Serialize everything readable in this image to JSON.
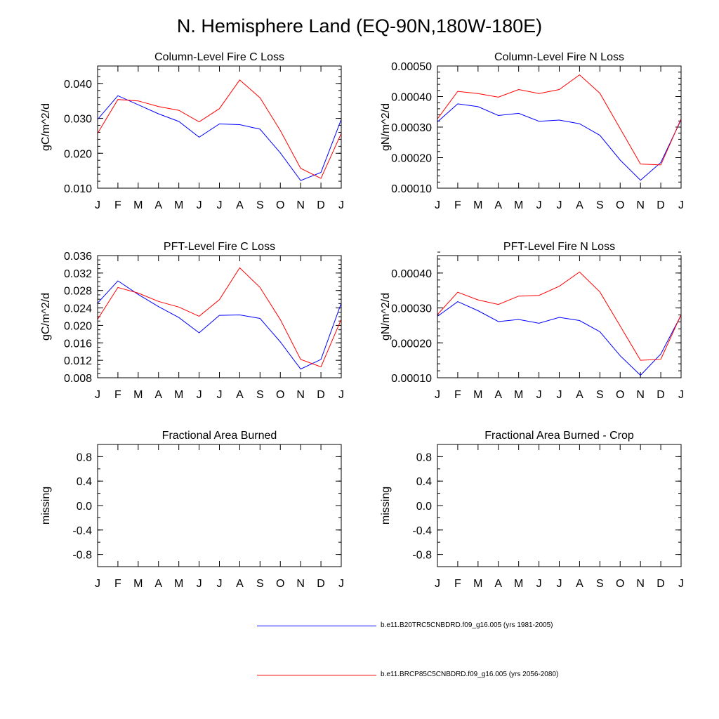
{
  "title": "N. Hemisphere Land (EQ-90N,180W-180E)",
  "series_colors": [
    "#0000ff",
    "#ff0000"
  ],
  "chart_data": [
    {
      "type": "line",
      "title": "Column-Level Fire C Loss",
      "ylabel": "gC/m^2/d",
      "categories": [
        "J",
        "F",
        "M",
        "A",
        "M",
        "J",
        "J",
        "A",
        "S",
        "O",
        "N",
        "D",
        "J"
      ],
      "ylim": [
        0.01,
        0.045
      ],
      "yticks": [
        "0.010",
        "0.020",
        "0.030",
        "0.040"
      ],
      "ytick_values": [
        0.01,
        0.02,
        0.03,
        0.04
      ],
      "yminor_step": 0.002,
      "series": [
        {
          "values": [
            0.0297,
            0.0365,
            0.0339,
            0.0313,
            0.0291,
            0.0246,
            0.0284,
            0.0282,
            0.0269,
            0.0201,
            0.0122,
            0.0145,
            0.0297
          ]
        },
        {
          "values": [
            0.0257,
            0.0354,
            0.035,
            0.0334,
            0.0323,
            0.029,
            0.0328,
            0.041,
            0.0359,
            0.0265,
            0.0157,
            0.0128,
            0.0257
          ]
        }
      ]
    },
    {
      "type": "line",
      "title": "Column-Level Fire N Loss",
      "ylabel": "gN/m^2/d",
      "categories": [
        "J",
        "F",
        "M",
        "A",
        "M",
        "J",
        "J",
        "A",
        "S",
        "O",
        "N",
        "D",
        "J"
      ],
      "ylim": [
        0.0001,
        0.0005
      ],
      "yticks": [
        "0.00010",
        "0.00020",
        "0.00030",
        "0.00040",
        "0.00050"
      ],
      "ytick_values": [
        0.0001,
        0.0002,
        0.0003,
        0.0004,
        0.0005
      ],
      "yminor_step": 2e-05,
      "series": [
        {
          "values": [
            0.000317,
            0.000376,
            0.000367,
            0.000338,
            0.000345,
            0.000319,
            0.000323,
            0.000311,
            0.000273,
            0.000192,
            0.000126,
            0.000184,
            0.000324
          ]
        },
        {
          "values": [
            0.000327,
            0.000417,
            0.00041,
            0.000398,
            0.000423,
            0.00041,
            0.000423,
            0.000471,
            0.000411,
            0.000295,
            0.000179,
            0.000176,
            0.000327
          ]
        }
      ]
    },
    {
      "type": "line",
      "title": "PFT-Level Fire C Loss",
      "ylabel": "gC/m^2/d",
      "categories": [
        "J",
        "F",
        "M",
        "A",
        "M",
        "J",
        "J",
        "A",
        "S",
        "O",
        "N",
        "D",
        "J"
      ],
      "ylim": [
        0.008,
        0.036
      ],
      "yticks": [
        "0.008",
        "0.012",
        "0.016",
        "0.020",
        "0.024",
        "0.028",
        "0.032",
        "0.036"
      ],
      "ytick_values": [
        0.008,
        0.012,
        0.016,
        0.02,
        0.024,
        0.028,
        0.032,
        0.036
      ],
      "yminor_step": 0.001,
      "series": [
        {
          "values": [
            0.0251,
            0.0302,
            0.0271,
            0.0243,
            0.0218,
            0.0183,
            0.0223,
            0.0224,
            0.0216,
            0.0162,
            0.01,
            0.0122,
            0.0251
          ]
        },
        {
          "values": [
            0.0214,
            0.0287,
            0.0274,
            0.0255,
            0.0242,
            0.0221,
            0.0259,
            0.0332,
            0.0287,
            0.0213,
            0.0122,
            0.0105,
            0.0214
          ]
        }
      ]
    },
    {
      "type": "line",
      "title": "PFT-Level Fire N Loss",
      "ylabel": "gN/m^2/d",
      "categories": [
        "J",
        "F",
        "M",
        "A",
        "M",
        "J",
        "J",
        "A",
        "S",
        "O",
        "N",
        "D",
        "J"
      ],
      "ylim": [
        0.0001,
        0.00045
      ],
      "yticks": [
        "0.00010",
        "0.00020",
        "0.00030",
        "0.00040"
      ],
      "ytick_values": [
        0.0001,
        0.0002,
        0.0003,
        0.0004
      ],
      "yminor_step": 2e-05,
      "series": [
        {
          "values": [
            0.000276,
            0.000318,
            0.000292,
            0.000261,
            0.000267,
            0.000256,
            0.000273,
            0.000264,
            0.000232,
            0.000163,
            0.000107,
            0.000168,
            0.000279
          ]
        },
        {
          "values": [
            0.000281,
            0.000345,
            0.000323,
            0.00031,
            0.000334,
            0.000336,
            0.000362,
            0.000403,
            0.000346,
            0.000248,
            0.00015,
            0.000153,
            0.000281
          ]
        }
      ]
    },
    {
      "type": "line",
      "title": "Fractional Area Burned",
      "ylabel": "missing",
      "categories": [
        "J",
        "F",
        "M",
        "A",
        "M",
        "J",
        "J",
        "A",
        "S",
        "O",
        "N",
        "D",
        "J"
      ],
      "ylim": [
        -1.0,
        1.0
      ],
      "yticks": [
        "-0.8",
        "-0.4",
        "0.0",
        "0.4",
        "0.8"
      ],
      "ytick_values": [
        -0.8,
        -0.4,
        0.0,
        0.4,
        0.8
      ],
      "yminor_step": 0.2,
      "series": []
    },
    {
      "type": "line",
      "title": "Fractional Area Burned - Crop",
      "ylabel": "missing",
      "categories": [
        "J",
        "F",
        "M",
        "A",
        "M",
        "J",
        "J",
        "A",
        "S",
        "O",
        "N",
        "D",
        "J"
      ],
      "ylim": [
        -1.0,
        1.0
      ],
      "yticks": [
        "-0.8",
        "-0.4",
        "0.0",
        "0.4",
        "0.8"
      ],
      "ytick_values": [
        -0.8,
        -0.4,
        0.0,
        0.4,
        0.8
      ],
      "yminor_step": 0.2,
      "series": []
    }
  ],
  "legend": [
    {
      "label": "b.e11.B20TRC5CNBDRD.f09_g16.005 (yrs 1981-2005)",
      "color": "#0000ff"
    },
    {
      "label": "b.e11.BRCP85C5CNBDRD.f09_g16.005 (yrs 2056-2080)",
      "color": "#ff0000"
    }
  ]
}
